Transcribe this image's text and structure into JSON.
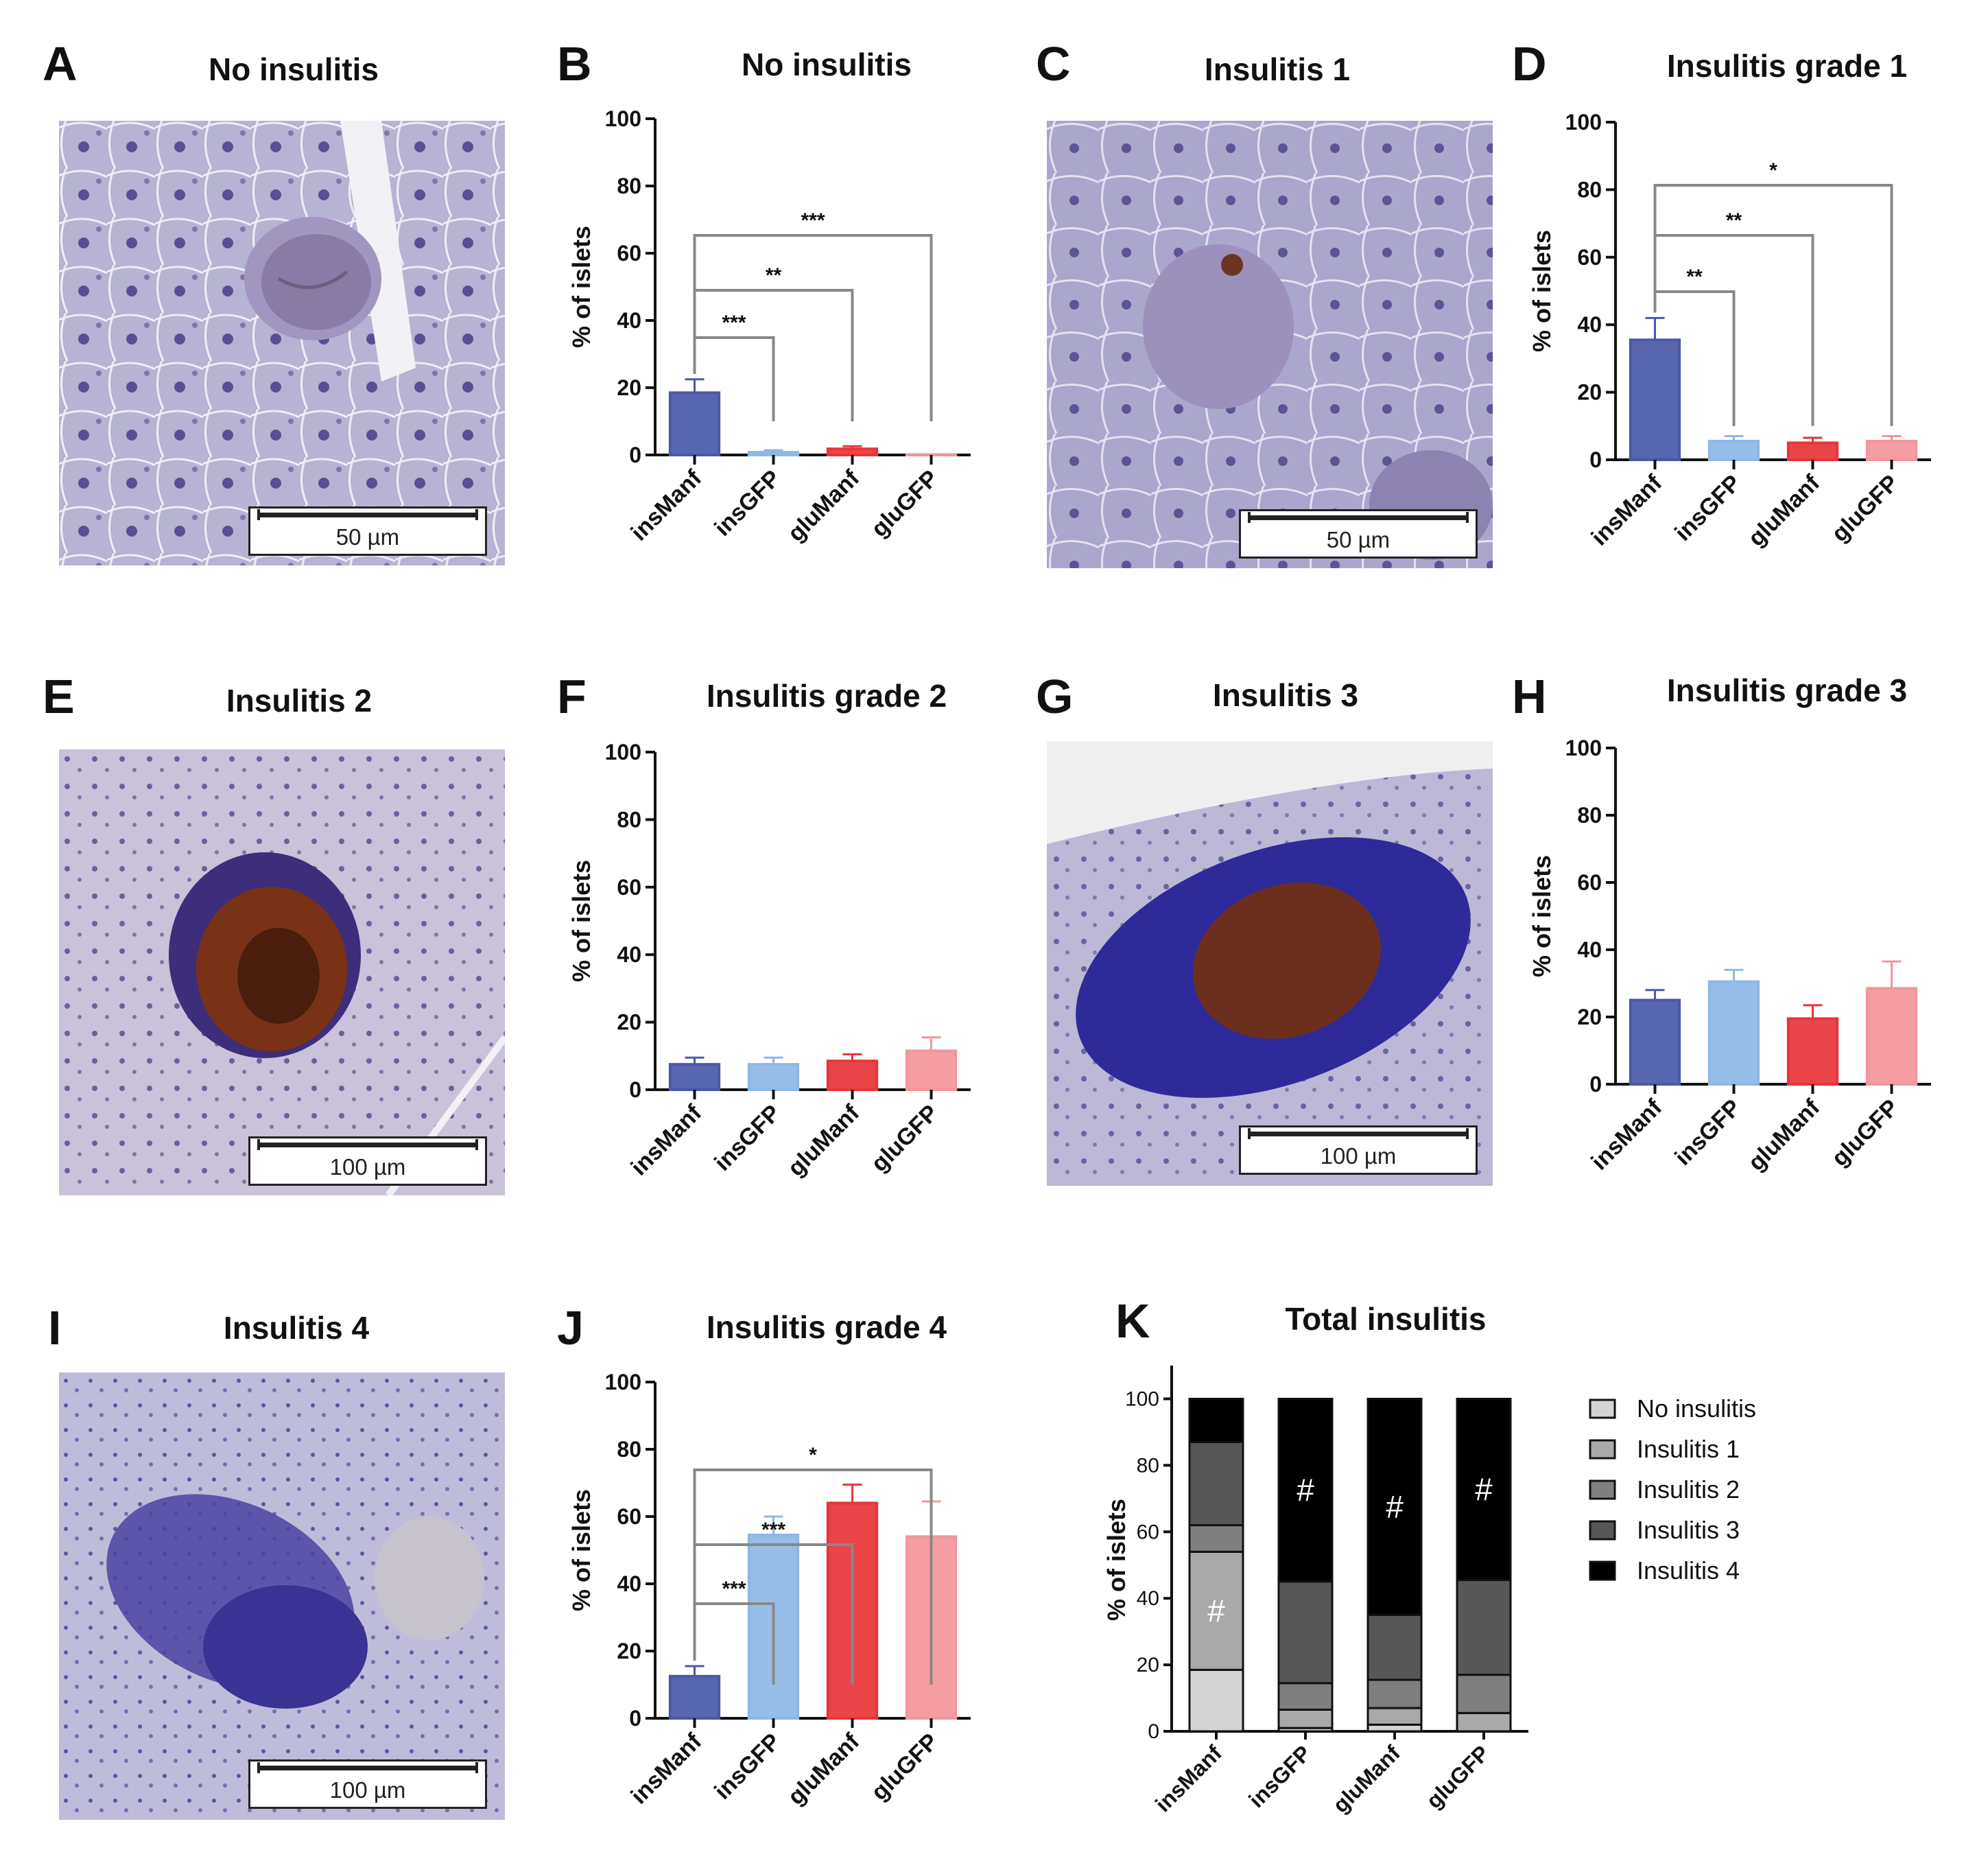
{
  "panels": {
    "A": {
      "letter": "A",
      "title": "No insulitis",
      "scale": "50 µm"
    },
    "B": {
      "letter": "B"
    },
    "C": {
      "letter": "C",
      "title": "Insulitis 1",
      "scale": "50 µm"
    },
    "D": {
      "letter": "D"
    },
    "E": {
      "letter": "E",
      "title": "Insulitis 2",
      "scale": "100 µm"
    },
    "F": {
      "letter": "F"
    },
    "G": {
      "letter": "G",
      "title": "Insulitis 3",
      "scale": "100 µm"
    },
    "H": {
      "letter": "H"
    },
    "I": {
      "letter": "I",
      "title": "Insulitis 4",
      "scale": "100 µm"
    },
    "J": {
      "letter": "J"
    },
    "K": {
      "letter": "K"
    }
  },
  "colors": {
    "insManf": "#4a58a8",
    "insGFP": "#8db8e6",
    "gluManf": "#e8353a",
    "gluGFP": "#f3959a",
    "stack": [
      "#d4d4d4",
      "#a9a9a9",
      "#7f7f7f",
      "#575757",
      "#000000"
    ]
  },
  "chart_data": [
    {
      "panel": "B",
      "type": "bar",
      "title": "No insulitis",
      "ylabel": "% of islets",
      "ylim": [
        0,
        100
      ],
      "yticks": [
        0,
        20,
        40,
        60,
        80,
        100
      ],
      "categories": [
        "insManf",
        "insGFP",
        "gluManf",
        "gluGFP"
      ],
      "values": [
        18.5,
        0.8,
        1.8,
        0
      ],
      "errors": [
        4,
        0.6,
        0.8,
        0
      ],
      "significance": [
        {
          "from": 0,
          "to": 1,
          "label": "***"
        },
        {
          "from": 0,
          "to": 2,
          "label": "**"
        },
        {
          "from": 0,
          "to": 3,
          "label": "***"
        }
      ]
    },
    {
      "panel": "D",
      "type": "bar",
      "title": "Insulitis grade 1",
      "ylabel": "% of islets",
      "ylim": [
        0,
        100
      ],
      "yticks": [
        0,
        20,
        40,
        60,
        80,
        100
      ],
      "categories": [
        "insManf",
        "insGFP",
        "gluManf",
        "gluGFP"
      ],
      "values": [
        35.5,
        5.5,
        5,
        5.5
      ],
      "errors": [
        6.5,
        1.5,
        1.5,
        1.5
      ],
      "significance": [
        {
          "from": 0,
          "to": 1,
          "label": "**"
        },
        {
          "from": 0,
          "to": 2,
          "label": "**"
        },
        {
          "from": 0,
          "to": 3,
          "label": "*"
        }
      ]
    },
    {
      "panel": "F",
      "type": "bar",
      "title": "Insulitis grade 2",
      "ylabel": "% of islets",
      "ylim": [
        0,
        100
      ],
      "yticks": [
        0,
        20,
        40,
        60,
        80,
        100
      ],
      "categories": [
        "insManf",
        "insGFP",
        "gluManf",
        "gluGFP"
      ],
      "values": [
        7.5,
        7.5,
        8.5,
        11.5
      ],
      "errors": [
        2,
        2,
        2,
        4
      ],
      "significance": []
    },
    {
      "panel": "H",
      "type": "bar",
      "title": "Insulitis grade 3",
      "ylabel": "% of islets",
      "ylim": [
        0,
        100
      ],
      "yticks": [
        0,
        20,
        40,
        60,
        80,
        100
      ],
      "categories": [
        "insManf",
        "insGFP",
        "gluManf",
        "gluGFP"
      ],
      "values": [
        25,
        30.5,
        19.5,
        28.5
      ],
      "errors": [
        3,
        3.5,
        4,
        8
      ],
      "significance": []
    },
    {
      "panel": "J",
      "type": "bar",
      "title": "Insulitis grade 4",
      "ylabel": "% of islets",
      "ylim": [
        0,
        100
      ],
      "yticks": [
        0,
        20,
        40,
        60,
        80,
        100
      ],
      "categories": [
        "insManf",
        "insGFP",
        "gluManf",
        "gluGFP"
      ],
      "values": [
        12.5,
        54.5,
        64,
        54
      ],
      "errors": [
        3,
        5.5,
        5.5,
        10.5
      ],
      "significance": [
        {
          "from": 0,
          "to": 1,
          "label": "***"
        },
        {
          "from": 0,
          "to": 2,
          "label": "***"
        },
        {
          "from": 0,
          "to": 3,
          "label": "*"
        }
      ]
    },
    {
      "panel": "K",
      "type": "bar",
      "stacked": true,
      "title": "Total insulitis",
      "ylabel": "% of islets",
      "ylim": [
        0,
        110
      ],
      "yticks": [
        0,
        20,
        40,
        60,
        80,
        100
      ],
      "categories": [
        "insManf",
        "insGFP",
        "gluManf",
        "gluGFP"
      ],
      "series": [
        {
          "name": "No insulitis",
          "values": [
            18.5,
            1,
            2,
            0
          ]
        },
        {
          "name": "Insulitis 1",
          "values": [
            35.5,
            5.5,
            5,
            5.5
          ]
        },
        {
          "name": "Insulitis 2",
          "values": [
            8,
            8,
            8.5,
            11.5
          ]
        },
        {
          "name": "Insulitis 3",
          "values": [
            25,
            30.5,
            19.5,
            28.5
          ]
        },
        {
          "name": "Insulitis 4",
          "values": [
            13,
            55,
            65,
            54.5
          ]
        }
      ],
      "markers": [
        {
          "category": 0,
          "series": 1,
          "label": "#"
        },
        {
          "category": 1,
          "series": 4,
          "label": "#"
        },
        {
          "category": 2,
          "series": 4,
          "label": "#"
        },
        {
          "category": 3,
          "series": 4,
          "label": "#"
        }
      ],
      "legend_position": "right"
    }
  ]
}
